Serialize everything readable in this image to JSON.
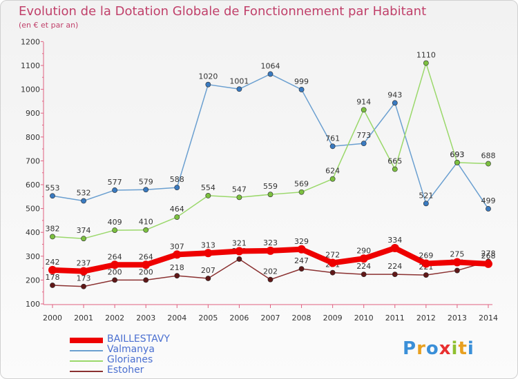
{
  "header": {
    "title": "Evolution de la Dotation Globale de Fonctionnement par Habitant",
    "subtitle": "(en € et par an)"
  },
  "logo": {
    "text": "Proxiti",
    "colors": [
      "#3a8fd8",
      "#e8a020",
      "#3a8fd8",
      "#e83030",
      "#8fc030",
      "#e8a020",
      "#3a8fd8"
    ]
  },
  "chart_data": {
    "type": "line",
    "x": [
      "2000",
      "2001",
      "2002",
      "2003",
      "2004",
      "2005",
      "2006",
      "2007",
      "2008",
      "2009",
      "2010",
      "2011",
      "2012",
      "2013",
      "2014"
    ],
    "ylim": [
      100,
      1200
    ],
    "yticks": [
      "100",
      "200",
      "300",
      "400",
      "500",
      "600",
      "700",
      "800",
      "900",
      "1000",
      "1100",
      "1200"
    ],
    "grid": false,
    "legend_position": "bottom-left",
    "series": [
      {
        "name": "Valmanya",
        "color": "#6a9fd0",
        "marker": "#3a7ac0",
        "values": [
          553,
          532,
          577,
          579,
          588,
          1020,
          1001,
          1064,
          999,
          761,
          773,
          943,
          521,
          693,
          499
        ],
        "labels": [
          "553",
          "532",
          "577",
          "579",
          "588",
          "1020",
          "1001",
          "1064",
          "999",
          "761",
          "773",
          "943",
          "521",
          "693",
          "499"
        ]
      },
      {
        "name": "Glorianes",
        "color": "#9ad86a",
        "marker": "#7cc040",
        "values": [
          382,
          374,
          409,
          410,
          464,
          554,
          547,
          559,
          569,
          624,
          914,
          665,
          1110,
          693,
          688
        ],
        "labels": [
          "382",
          "374",
          "409",
          "410",
          "464",
          "554",
          "547",
          "559",
          "569",
          "624",
          "914",
          "665",
          "1110",
          "693",
          "688"
        ]
      },
      {
        "name": "Estoher",
        "color": "#8a3030",
        "marker": "#601818",
        "values": [
          178,
          173,
          200,
          200,
          218,
          207,
          288,
          202,
          247,
          231,
          224,
          224,
          221,
          240,
          278
        ],
        "labels": [
          "178",
          "173",
          "200",
          "200",
          "218",
          "207",
          "288",
          "202",
          "247",
          "231",
          "224",
          "224",
          "221",
          "240",
          "278"
        ]
      },
      {
        "name": "BAILLESTAVY",
        "color": "#ee0000",
        "marker": "#ee0000",
        "values": [
          242,
          237,
          264,
          264,
          307,
          313,
          321,
          323,
          329,
          272,
          290,
          334,
          269,
          275,
          268
        ],
        "labels": [
          "242",
          "237",
          "264",
          "264",
          "307",
          "313",
          "321",
          "323",
          "329",
          "272",
          "290",
          "334",
          "269",
          "275",
          "268"
        ]
      }
    ],
    "legend": [
      "BAILLESTAVY",
      "Valmanya",
      "Glorianes",
      "Estoher"
    ]
  }
}
